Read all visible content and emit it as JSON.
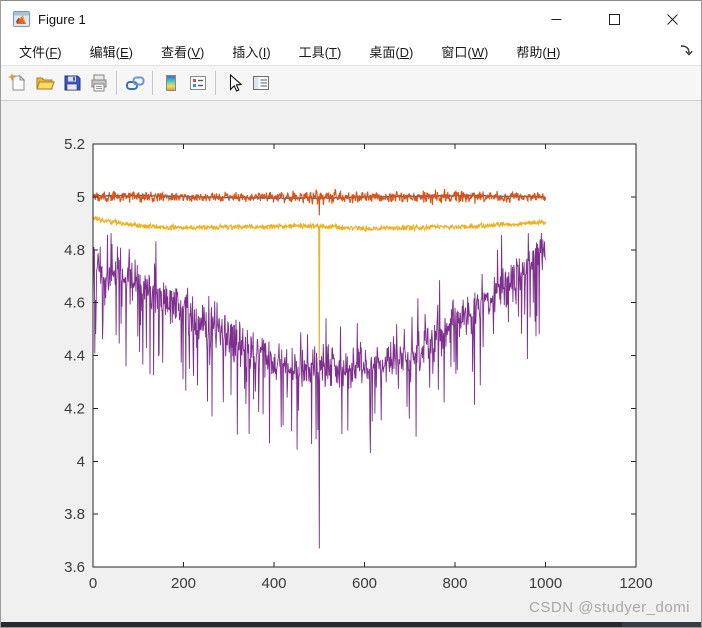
{
  "window": {
    "title": "Figure 1",
    "icons": {
      "app": "matlab-figure-icon",
      "minimize": "minimize-icon (horizontal bar)",
      "maximize": "maximize-icon (square outline)",
      "close": "close-icon (x cross)"
    }
  },
  "menu": {
    "items": [
      {
        "label": "文件(F)"
      },
      {
        "label": "编辑(E)"
      },
      {
        "label": "查看(V)"
      },
      {
        "label": "插入(I)"
      },
      {
        "label": "工具(T)"
      },
      {
        "label": "桌面(D)"
      },
      {
        "label": "窗口(W)"
      },
      {
        "label": "帮助(H)"
      }
    ],
    "dock_arrow_icon": "dock-figure-arrow-icon"
  },
  "toolbar": {
    "buttons": [
      {
        "icon": "new-figure-icon"
      },
      {
        "icon": "open-file-icon"
      },
      {
        "icon": "save-icon"
      },
      {
        "icon": "print-icon"
      },
      {
        "icon": "link-plot-icon"
      },
      {
        "icon": "insert-colorbar-icon"
      },
      {
        "icon": "insert-legend-icon"
      },
      {
        "icon": "edit-plot-arrow-icon"
      },
      {
        "icon": "property-inspector-icon"
      }
    ]
  },
  "watermark": {
    "text": "CSDN @studyer_domi"
  },
  "chart_data": {
    "type": "line",
    "title": "",
    "xlabel": "",
    "ylabel": "",
    "xlim": [
      0,
      1200
    ],
    "ylim": [
      3.6,
      5.2
    ],
    "xticks": [
      0,
      200,
      400,
      600,
      800,
      1000,
      1200
    ],
    "yticks": [
      3.6,
      3.8,
      4,
      4.2,
      4.4,
      4.6,
      4.8,
      5,
      5.2
    ],
    "grid": false,
    "legend_position": "none",
    "x_data_range": [
      0,
      1000
    ],
    "n_points": 1001,
    "seed": 1337,
    "axis_color": "#262626",
    "tick_label_color": "#3c3c3c",
    "plot_bg": "#ffffff",
    "series": [
      {
        "name": "series-1-blue",
        "color": "#0072BD",
        "style": "smooth-flat",
        "base": 5.0,
        "wander_amp": 0.005,
        "noise": 0.002,
        "description": "nearly flat smooth line at y = 5.0"
      },
      {
        "name": "series-2-orange",
        "color": "#D95319",
        "style": "noisy-flat",
        "base": 5.0,
        "noise": 0.012,
        "noise_bumps": [
          {
            "x": 500,
            "sigma": 55,
            "amp": 0.009
          },
          {
            "x": 770,
            "sigma": 90,
            "amp": 0.007
          },
          {
            "x": 50,
            "sigma": 40,
            "amp": 0.005
          }
        ],
        "spike": {
          "x": 500,
          "y": 4.93
        },
        "description": "noisy line fluctuating around y = 5.0 with downward spike to 4.93 at x = 500"
      },
      {
        "name": "series-3-yellow",
        "color": "#EDB120",
        "style": "noisy-envelope",
        "noise": 0.007,
        "envelope": {
          "x": [
            0,
            60,
            150,
            300,
            450,
            500,
            600,
            750,
            850,
            950,
            1000
          ],
          "y": [
            4.92,
            4.9,
            4.885,
            4.885,
            4.89,
            4.89,
            4.88,
            4.885,
            4.89,
            4.9,
            4.905
          ]
        },
        "spike": {
          "x": 500,
          "y": 4.36
        },
        "description": "slightly noisy line near y = 4.89 with deep vertical spike to 4.36 at x = 500"
      },
      {
        "name": "series-4-purple",
        "color": "#7E2F8E",
        "style": "noisy-envelope-spiky",
        "noise": 0.055,
        "envelope": {
          "x": [
            0,
            30,
            60,
            100,
            150,
            200,
            250,
            300,
            350,
            400,
            450,
            500,
            550,
            600,
            650,
            700,
            750,
            800,
            850,
            900,
            950,
            1000
          ],
          "y": [
            4.75,
            4.72,
            4.7,
            4.67,
            4.62,
            4.57,
            4.52,
            4.47,
            4.42,
            4.38,
            4.36,
            4.37,
            4.34,
            4.35,
            4.37,
            4.4,
            4.45,
            4.52,
            4.58,
            4.65,
            4.72,
            4.8
          ]
        },
        "down_spikes": {
          "prob": 0.16,
          "max_depth": 0.36
        },
        "up_spikes": {
          "prob": 0.1,
          "max_height": 0.17
        },
        "spike": {
          "x": 500,
          "y": 3.67
        },
        "clamp_max": 4.92,
        "description": "very noisy V-shaped band: ~4.7 at edges dipping to ~4.35 mid, huge spike to 3.67 at x = 500"
      }
    ]
  }
}
